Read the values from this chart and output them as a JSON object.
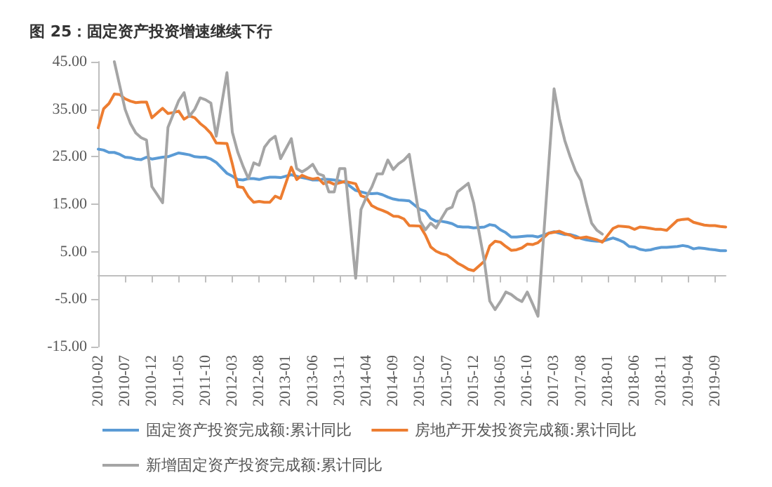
{
  "chart_data": {
    "type": "line",
    "title": "图 25：固定资产投资增速继续下行",
    "categories": [
      "2010-02",
      null,
      null,
      null,
      null,
      "2010-07",
      null,
      null,
      null,
      null,
      "2010-12",
      null,
      null,
      null,
      null,
      "2011-05",
      null,
      null,
      null,
      null,
      "2011-10",
      null,
      null,
      null,
      null,
      "2012-03",
      null,
      null,
      null,
      null,
      "2012-08",
      null,
      null,
      null,
      null,
      "2013-01",
      null,
      null,
      null,
      null,
      "2013-06",
      null,
      null,
      null,
      null,
      "2013-11",
      null,
      null,
      null,
      null,
      "2014-04",
      null,
      null,
      null,
      null,
      "2014-09",
      null,
      null,
      null,
      null,
      "2015-02",
      null,
      null,
      null,
      null,
      "2015-07",
      null,
      null,
      null,
      null,
      "2015-12",
      null,
      null,
      null,
      null,
      "2016-05",
      null,
      null,
      null,
      null,
      "2016-10",
      null,
      null,
      null,
      null,
      "2017-03",
      null,
      null,
      null,
      null,
      "2017-08",
      null,
      null,
      null,
      null,
      "2018-01",
      null,
      null,
      null,
      null,
      "2018-06",
      null,
      null,
      null,
      null,
      "2018-11",
      null,
      null,
      null,
      null,
      "2019-04",
      null,
      null,
      null,
      null,
      "2019-09",
      null,
      null
    ],
    "series": [
      {
        "name": "固定资产投资完成额:累计同比",
        "color": "#5b9bd5",
        "values": [
          26.6,
          26.4,
          25.9,
          25.9,
          25.5,
          24.9,
          24.8,
          24.5,
          24.4,
          24.9,
          24.5,
          null,
          24.9,
          25.0,
          25.4,
          25.8,
          25.6,
          25.4,
          25.0,
          24.9,
          24.9,
          24.5,
          23.8,
          null,
          21.5,
          20.9,
          20.2,
          20.1,
          20.4,
          20.4,
          20.2,
          20.5,
          20.7,
          20.7,
          20.6,
          null,
          21.2,
          20.9,
          20.6,
          20.4,
          20.1,
          20.1,
          20.3,
          20.2,
          20.1,
          19.9,
          19.6,
          null,
          17.9,
          17.6,
          17.3,
          17.2,
          17.3,
          17.0,
          16.5,
          16.1,
          15.9,
          15.8,
          15.7,
          null,
          13.9,
          13.5,
          12.0,
          11.4,
          11.4,
          11.2,
          10.9,
          10.3,
          10.2,
          10.2,
          10.0,
          null,
          10.2,
          10.7,
          10.5,
          9.6,
          9.0,
          8.1,
          8.1,
          8.2,
          8.3,
          8.3,
          8.1,
          null,
          8.9,
          9.2,
          8.9,
          8.6,
          8.6,
          8.3,
          7.8,
          7.5,
          7.3,
          7.2,
          7.2,
          null,
          7.9,
          7.5,
          7.0,
          6.1,
          6.0,
          5.5,
          5.3,
          5.4,
          5.7,
          5.9,
          5.9,
          null,
          6.1,
          6.3,
          6.1,
          5.6,
          5.8,
          5.7,
          5.5,
          5.4,
          5.2,
          5.2
        ]
      },
      {
        "name": "房地产开发投资完成额:累计同比",
        "color": "#ed7d31",
        "values": [
          31.1,
          35.1,
          36.2,
          38.2,
          38.1,
          37.2,
          36.7,
          36.4,
          36.5,
          36.5,
          33.2,
          null,
          35.2,
          34.1,
          34.3,
          34.6,
          32.9,
          33.6,
          33.2,
          32.0,
          31.1,
          29.9,
          27.9,
          null,
          27.8,
          23.5,
          18.7,
          18.5,
          16.6,
          15.4,
          15.6,
          15.4,
          15.4,
          16.7,
          16.2,
          null,
          22.8,
          20.2,
          21.1,
          20.6,
          20.3,
          20.5,
          19.3,
          19.7,
          19.2,
          19.5,
          19.8,
          null,
          19.3,
          16.8,
          16.4,
          14.7,
          14.1,
          13.7,
          13.2,
          12.5,
          12.4,
          11.9,
          10.5,
          null,
          10.4,
          8.5,
          6.0,
          5.1,
          4.6,
          4.3,
          3.5,
          2.6,
          2.0,
          1.3,
          1.0,
          null,
          3.0,
          6.2,
          7.2,
          7.0,
          6.1,
          5.3,
          5.4,
          5.8,
          6.6,
          6.5,
          6.9,
          null,
          8.9,
          9.1,
          9.3,
          8.8,
          8.5,
          7.9,
          7.9,
          8.1,
          7.8,
          7.5,
          7.0,
          null,
          9.9,
          10.4,
          10.3,
          10.2,
          9.7,
          10.2,
          10.1,
          9.9,
          9.7,
          9.7,
          9.5,
          null,
          11.6,
          11.8,
          11.9,
          11.2,
          10.9,
          10.6,
          10.5,
          10.5,
          10.3,
          10.2
        ]
      },
      {
        "name": "新增固定资产投资完成额:累计同比",
        "color": "#a5a5a5",
        "values": [
          null,
          null,
          null,
          45,
          40,
          35,
          32,
          30,
          29,
          28.5,
          18.7,
          null,
          15.3,
          31.2,
          34,
          36.8,
          38.5,
          33.5,
          35,
          37.4,
          37,
          36.3,
          29.3,
          null,
          42.7,
          30.2,
          26,
          23,
          20.4,
          23.7,
          23.2,
          27,
          28.5,
          29.3,
          24.6,
          null,
          28.8,
          22.5,
          21.8,
          22.5,
          23.4,
          21.4,
          21,
          17.6,
          17.6,
          22.5,
          22.5,
          null,
          -0.6,
          13.9,
          16.5,
          18.6,
          21.4,
          21.4,
          24.3,
          22.3,
          23.5,
          24.3,
          25.5,
          null,
          11.5,
          9.6,
          11,
          10,
          12,
          13.9,
          14.4,
          17.6,
          18.5,
          19.4,
          15.3,
          null,
          3,
          -5.4,
          -7.2,
          -5.5,
          -3.5,
          -4,
          -4.9,
          -5.5,
          -3.5,
          -6,
          -8.6,
          null,
          null,
          39.3,
          33,
          28.4,
          25,
          22,
          20,
          15.3,
          11,
          9.5,
          8.7,
          null,
          null,
          null,
          null,
          null,
          null,
          null,
          null,
          null,
          null,
          null,
          null,
          null,
          null,
          null,
          null,
          null,
          null,
          null,
          null,
          null,
          null,
          null
        ]
      }
    ],
    "ylim": [
      -15,
      45
    ],
    "yticks": [
      {
        "value": -15,
        "label": "-15.00"
      },
      {
        "value": -5,
        "label": "-5.00"
      },
      {
        "value": 5,
        "label": "5.00"
      },
      {
        "value": 15,
        "label": "15.00"
      },
      {
        "value": 25,
        "label": "25.00"
      },
      {
        "value": 35,
        "label": "35.00"
      },
      {
        "value": 45,
        "label": "45.00"
      }
    ],
    "grid": false,
    "legend": "bottom",
    "marker": "none",
    "line_style": "solid"
  }
}
